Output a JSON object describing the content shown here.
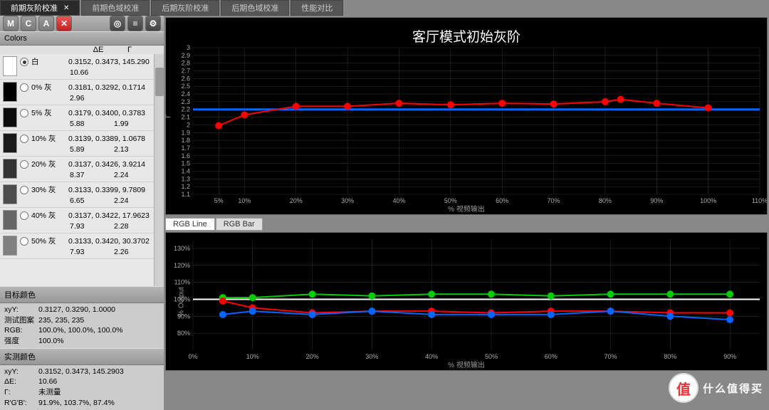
{
  "tabs": [
    {
      "label": "前期灰阶校准",
      "active": true,
      "closeable": true
    },
    {
      "label": "前期色域校准",
      "active": false
    },
    {
      "label": "后期灰阶校准",
      "active": false
    },
    {
      "label": "后期色域校准",
      "active": false
    },
    {
      "label": "性能对比",
      "active": false
    }
  ],
  "toolbar_buttons": [
    "M",
    "C",
    "A"
  ],
  "colors_header": {
    "title": "Colors",
    "col_de": "ΔE",
    "col_gamma": "Γ"
  },
  "color_rows": [
    {
      "swatch": "#ffffff",
      "name": "白",
      "selected": true,
      "xy": "0.3152, 0.3473, 145.290",
      "de": "10.66",
      "gamma": ""
    },
    {
      "swatch": "#000000",
      "name": "0% 灰",
      "selected": false,
      "xy": "0.3181, 0.3292, 0.1714",
      "de": "2.96",
      "gamma": ""
    },
    {
      "swatch": "#0d0d0d",
      "name": "5% 灰",
      "selected": false,
      "xy": "0.3179, 0.3400, 0.3783",
      "de": "5.88",
      "gamma": "1.99"
    },
    {
      "swatch": "#1a1a1a",
      "name": "10% 灰",
      "selected": false,
      "xy": "0.3139, 0.3389, 1.0678",
      "de": "5.89",
      "gamma": "2.13"
    },
    {
      "swatch": "#333333",
      "name": "20% 灰",
      "selected": false,
      "xy": "0.3137, 0.3426, 3.9214",
      "de": "8.37",
      "gamma": "2.24"
    },
    {
      "swatch": "#4d4d4d",
      "name": "30% 灰",
      "selected": false,
      "xy": "0.3133, 0.3399, 9.7809",
      "de": "6.65",
      "gamma": "2.24"
    },
    {
      "swatch": "#666666",
      "name": "40% 灰",
      "selected": false,
      "xy": "0.3137, 0.3422, 17.9623",
      "de": "7.93",
      "gamma": "2.28"
    },
    {
      "swatch": "#808080",
      "name": "50% 灰",
      "selected": false,
      "xy": "0.3133, 0.3420, 30.3702",
      "de": "7.93",
      "gamma": "2.26"
    }
  ],
  "target_color": {
    "title": "目标颜色",
    "rows": [
      {
        "lbl": "xyY:",
        "val": "0.3127, 0.3290, 1.0000"
      },
      {
        "lbl": "测试图案",
        "val": "235, 235, 235"
      },
      {
        "lbl": "RGB:",
        "val": "100.0%, 100.0%, 100.0%"
      },
      {
        "lbl": "强度",
        "val": "100.0%"
      }
    ]
  },
  "measured_color": {
    "title": "实测颜色",
    "rows": [
      {
        "lbl": "xyY:",
        "val": "0.3152, 0.3473, 145.2903"
      },
      {
        "lbl": "ΔE:",
        "val": "10.66"
      },
      {
        "lbl": "Γ:",
        "val": "未测量"
      },
      {
        "lbl": "R'G'B':",
        "val": "91.9%, 103.7%, 87.4%"
      }
    ]
  },
  "chart1": {
    "title": "客厅模式初始灰阶",
    "ylabel": "Γ",
    "xlabel": "% 视频输出",
    "ymin": 1.1,
    "ymax": 3.0,
    "ystep": 0.1,
    "xmin": 0,
    "xmax": 110,
    "xticks": [
      {
        "v": 5,
        "l": "5%"
      },
      {
        "v": 10,
        "l": "10%"
      },
      {
        "v": 20,
        "l": "20%"
      },
      {
        "v": 30,
        "l": "30%"
      },
      {
        "v": 40,
        "l": "40%"
      },
      {
        "v": 50,
        "l": "50%"
      },
      {
        "v": 60,
        "l": "60%"
      },
      {
        "v": 70,
        "l": "70%"
      },
      {
        "v": 80,
        "l": "80%"
      },
      {
        "v": 90,
        "l": "90%"
      },
      {
        "v": 100,
        "l": "100%"
      },
      {
        "v": 110,
        "l": "110%"
      }
    ],
    "ref_line": {
      "y": 2.2,
      "color": "#0066ff",
      "width": 3
    },
    "series": {
      "color": "#ff0000",
      "marker_color": "#ff0000",
      "width": 2,
      "points": [
        {
          "x": 5,
          "y": 1.99
        },
        {
          "x": 10,
          "y": 2.13
        },
        {
          "x": 20,
          "y": 2.24
        },
        {
          "x": 30,
          "y": 2.24
        },
        {
          "x": 40,
          "y": 2.28
        },
        {
          "x": 50,
          "y": 2.26
        },
        {
          "x": 60,
          "y": 2.28
        },
        {
          "x": 70,
          "y": 2.27
        },
        {
          "x": 80,
          "y": 2.3
        },
        {
          "x": 83,
          "y": 2.33
        },
        {
          "x": 90,
          "y": 2.28
        },
        {
          "x": 100,
          "y": 2.22
        }
      ]
    },
    "bg": "#000000",
    "grid": "#333333",
    "text": "#aaaaaa"
  },
  "rgb_tabs": [
    {
      "label": "RGB Line",
      "active": true
    },
    {
      "label": "RGB Bar",
      "active": false
    }
  ],
  "chart2": {
    "ylabel": "% Output",
    "xlabel": "% 视频输出",
    "ymin": 70,
    "ymax": 135,
    "yticks": [
      80,
      90,
      100,
      110,
      120,
      130
    ],
    "xmin": 0,
    "xmax": 95,
    "xticks": [
      {
        "v": 0,
        "l": "0%"
      },
      {
        "v": 10,
        "l": "10%"
      },
      {
        "v": 20,
        "l": "20%"
      },
      {
        "v": 30,
        "l": "30%"
      },
      {
        "v": 40,
        "l": "40%"
      },
      {
        "v": 50,
        "l": "50%"
      },
      {
        "v": 60,
        "l": "60%"
      },
      {
        "v": 70,
        "l": "70%"
      },
      {
        "v": 80,
        "l": "80%"
      },
      {
        "v": 90,
        "l": "90%"
      }
    ],
    "ref_line": {
      "y": 100,
      "color": "#ffffff",
      "width": 2
    },
    "series": [
      {
        "color": "#00cc00",
        "marker_color": "#00cc00",
        "width": 2,
        "points": [
          {
            "x": 5,
            "y": 101
          },
          {
            "x": 10,
            "y": 101
          },
          {
            "x": 20,
            "y": 103
          },
          {
            "x": 30,
            "y": 102
          },
          {
            "x": 40,
            "y": 103
          },
          {
            "x": 50,
            "y": 103
          },
          {
            "x": 60,
            "y": 102
          },
          {
            "x": 70,
            "y": 103
          },
          {
            "x": 80,
            "y": 103
          },
          {
            "x": 90,
            "y": 103
          }
        ]
      },
      {
        "color": "#ff0000",
        "marker_color": "#ff0000",
        "width": 2,
        "points": [
          {
            "x": 5,
            "y": 99
          },
          {
            "x": 10,
            "y": 95
          },
          {
            "x": 20,
            "y": 92
          },
          {
            "x": 30,
            "y": 93
          },
          {
            "x": 40,
            "y": 93
          },
          {
            "x": 50,
            "y": 92
          },
          {
            "x": 60,
            "y": 93
          },
          {
            "x": 70,
            "y": 93
          },
          {
            "x": 80,
            "y": 92
          },
          {
            "x": 90,
            "y": 92
          }
        ]
      },
      {
        "color": "#0066ff",
        "marker_color": "#0066ff",
        "width": 2,
        "points": [
          {
            "x": 5,
            "y": 91
          },
          {
            "x": 10,
            "y": 93
          },
          {
            "x": 20,
            "y": 91
          },
          {
            "x": 30,
            "y": 93
          },
          {
            "x": 40,
            "y": 91
          },
          {
            "x": 50,
            "y": 91
          },
          {
            "x": 60,
            "y": 91
          },
          {
            "x": 70,
            "y": 93
          },
          {
            "x": 80,
            "y": 90
          },
          {
            "x": 90,
            "y": 88
          }
        ]
      }
    ],
    "bg": "#000000",
    "grid": "#333333",
    "text": "#aaaaaa"
  },
  "watermark": {
    "icon": "值",
    "text": "什么值得买"
  }
}
